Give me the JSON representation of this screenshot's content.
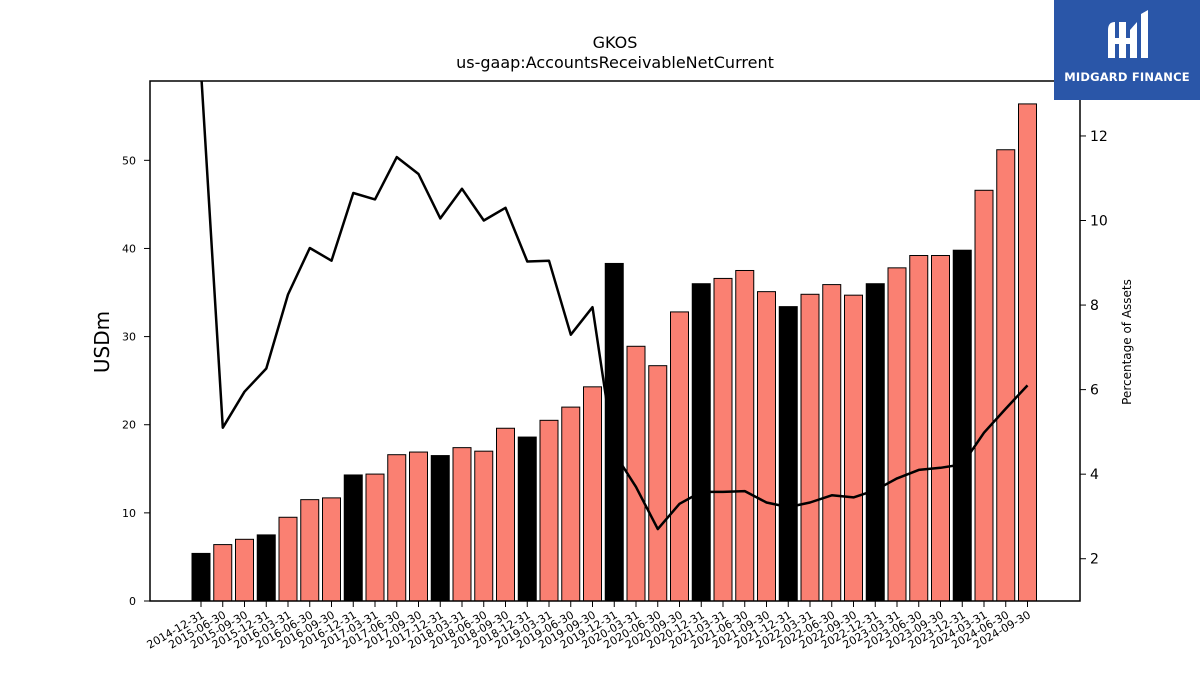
{
  "brand": {
    "name": "MIDGARD FINANCE",
    "color": "#2a56a8"
  },
  "chart_data": {
    "type": "bar",
    "title": "GKOS",
    "subtitle": "us-gaap:AccountsReceivableNetCurrent",
    "ylabel": "USDm",
    "ylabel_right": "Percentage of Assets",
    "ylim": [
      0,
      59
    ],
    "ylim_right": [
      1,
      13.3
    ],
    "yticks": [
      0,
      10,
      20,
      30,
      40,
      50
    ],
    "yticks_right": [
      2,
      4,
      6,
      8,
      10,
      12
    ],
    "grid": false,
    "categories": [
      "2014-12-31",
      "2015-06-30",
      "2015-09-30",
      "2015-12-31",
      "2016-03-31",
      "2016-06-30",
      "2016-09-30",
      "2016-12-31",
      "2017-03-31",
      "2017-06-30",
      "2017-09-30",
      "2017-12-31",
      "2018-03-31",
      "2018-06-30",
      "2018-09-30",
      "2018-12-31",
      "2019-03-31",
      "2019-06-30",
      "2019-09-30",
      "2019-12-31",
      "2020-03-31",
      "2020-06-30",
      "2020-09-30",
      "2020-12-31",
      "2021-03-31",
      "2021-06-30",
      "2021-09-30",
      "2021-12-31",
      "2022-03-31",
      "2022-06-30",
      "2022-09-30",
      "2022-12-31",
      "2023-03-31",
      "2023-06-30",
      "2023-09-30",
      "2023-12-31",
      "2024-03-31",
      "2024-06-30",
      "2024-09-30"
    ],
    "series": [
      {
        "type": "bar",
        "values": [
          5.4,
          6.4,
          7.0,
          7.5,
          9.5,
          11.5,
          11.7,
          14.3,
          14.4,
          16.6,
          16.9,
          16.5,
          17.4,
          17.0,
          19.6,
          18.6,
          20.5,
          22.0,
          24.3,
          38.3,
          28.9,
          26.7,
          32.8,
          36.0,
          36.6,
          37.5,
          35.1,
          33.4,
          34.8,
          35.9,
          34.7,
          36.0,
          37.8,
          39.2,
          39.2,
          39.8,
          46.6,
          51.2,
          56.4
        ],
        "colors": [
          "#000000",
          "#fa8072",
          "#fa8072",
          "#000000",
          "#fa8072",
          "#fa8072",
          "#fa8072",
          "#000000",
          "#fa8072",
          "#fa8072",
          "#fa8072",
          "#000000",
          "#fa8072",
          "#fa8072",
          "#fa8072",
          "#000000",
          "#fa8072",
          "#fa8072",
          "#fa8072",
          "#000000",
          "#fa8072",
          "#fa8072",
          "#fa8072",
          "#000000",
          "#fa8072",
          "#fa8072",
          "#fa8072",
          "#000000",
          "#fa8072",
          "#fa8072",
          "#fa8072",
          "#000000",
          "#fa8072",
          "#fa8072",
          "#fa8072",
          "#000000",
          "#fa8072",
          "#fa8072",
          "#fa8072"
        ]
      },
      {
        "type": "line",
        "axis": "right",
        "color": "#000000",
        "values": [
          14.5,
          5.1,
          5.95,
          6.5,
          8.25,
          9.35,
          9.05,
          10.65,
          10.5,
          11.5,
          11.1,
          10.05,
          10.75,
          10.0,
          10.3,
          9.03,
          9.05,
          7.3,
          7.95,
          4.5,
          3.7,
          2.7,
          3.3,
          3.58,
          3.58,
          3.6,
          3.33,
          3.22,
          3.33,
          3.5,
          3.45,
          3.62,
          3.9,
          4.1,
          4.15,
          4.23,
          4.98,
          5.55,
          6.1
        ]
      }
    ]
  }
}
